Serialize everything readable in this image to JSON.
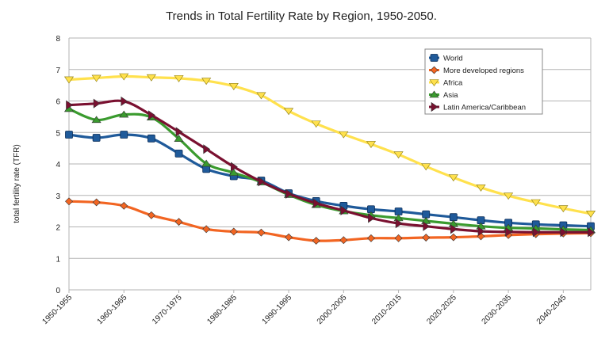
{
  "chart_data": {
    "type": "line",
    "title": "Trends in Total Fertility Rate by Region, 1950-2050.",
    "xlabel": "",
    "ylabel": "total fertility rate (TFR)",
    "ylim": [
      0,
      8
    ],
    "yticks": [
      "0",
      "1",
      "2",
      "3",
      "4",
      "5",
      "6",
      "7",
      "8"
    ],
    "grid": "horizontal",
    "legend_position": "top-right",
    "x": [
      "1950-1955",
      "1955-1960",
      "1960-1965",
      "1965-1970",
      "1970-1975",
      "1975-1980",
      "1980-1985",
      "1985-1990",
      "1990-1995",
      "1995-2000",
      "2000-2005",
      "2005-2010",
      "2010-2015",
      "2015-2020",
      "2020-2025",
      "2025-2030",
      "2030-2035",
      "2035-2040",
      "2040-2045",
      "2045-2050"
    ],
    "xtick_labels": [
      "1950-1955",
      "1960-1965",
      "1970-1975",
      "1980-1985",
      "1990-1995",
      "2000-2005",
      "2010-2015",
      "2020-2025",
      "2030-2035",
      "2040-2045"
    ],
    "series": [
      {
        "name": "World",
        "color": "#1f5a9a",
        "marker": "square",
        "values": [
          4.93,
          4.83,
          4.93,
          4.81,
          4.33,
          3.84,
          3.61,
          3.47,
          3.07,
          2.82,
          2.67,
          2.56,
          2.49,
          2.4,
          2.31,
          2.21,
          2.13,
          2.08,
          2.05,
          2.02
        ]
      },
      {
        "name": "More developed regions",
        "color": "#f26522",
        "marker": "diamond",
        "values": [
          2.81,
          2.78,
          2.67,
          2.37,
          2.16,
          1.93,
          1.85,
          1.82,
          1.67,
          1.56,
          1.58,
          1.64,
          1.64,
          1.66,
          1.67,
          1.7,
          1.74,
          1.77,
          1.79,
          1.8
        ]
      },
      {
        "name": "Africa",
        "color": "#ffe14d",
        "marker": "triangle-down",
        "values": [
          6.68,
          6.73,
          6.78,
          6.75,
          6.72,
          6.64,
          6.47,
          6.18,
          5.68,
          5.28,
          4.94,
          4.63,
          4.3,
          3.92,
          3.57,
          3.25,
          2.99,
          2.78,
          2.59,
          2.42
        ]
      },
      {
        "name": "Asia",
        "color": "#3a9b2e",
        "marker": "triangle-up",
        "values": [
          5.75,
          5.4,
          5.57,
          5.48,
          4.8,
          4.01,
          3.72,
          3.42,
          3.02,
          2.7,
          2.5,
          2.37,
          2.28,
          2.19,
          2.1,
          2.02,
          1.97,
          1.95,
          1.92,
          1.9
        ]
      },
      {
        "name": "Latin America/Caribbean",
        "color": "#7a1030",
        "marker": "triangle-right",
        "values": [
          5.87,
          5.92,
          5.99,
          5.55,
          5.02,
          4.47,
          3.91,
          3.44,
          3.05,
          2.75,
          2.52,
          2.28,
          2.11,
          2.02,
          1.93,
          1.86,
          1.84,
          1.83,
          1.83,
          1.83
        ]
      }
    ]
  }
}
